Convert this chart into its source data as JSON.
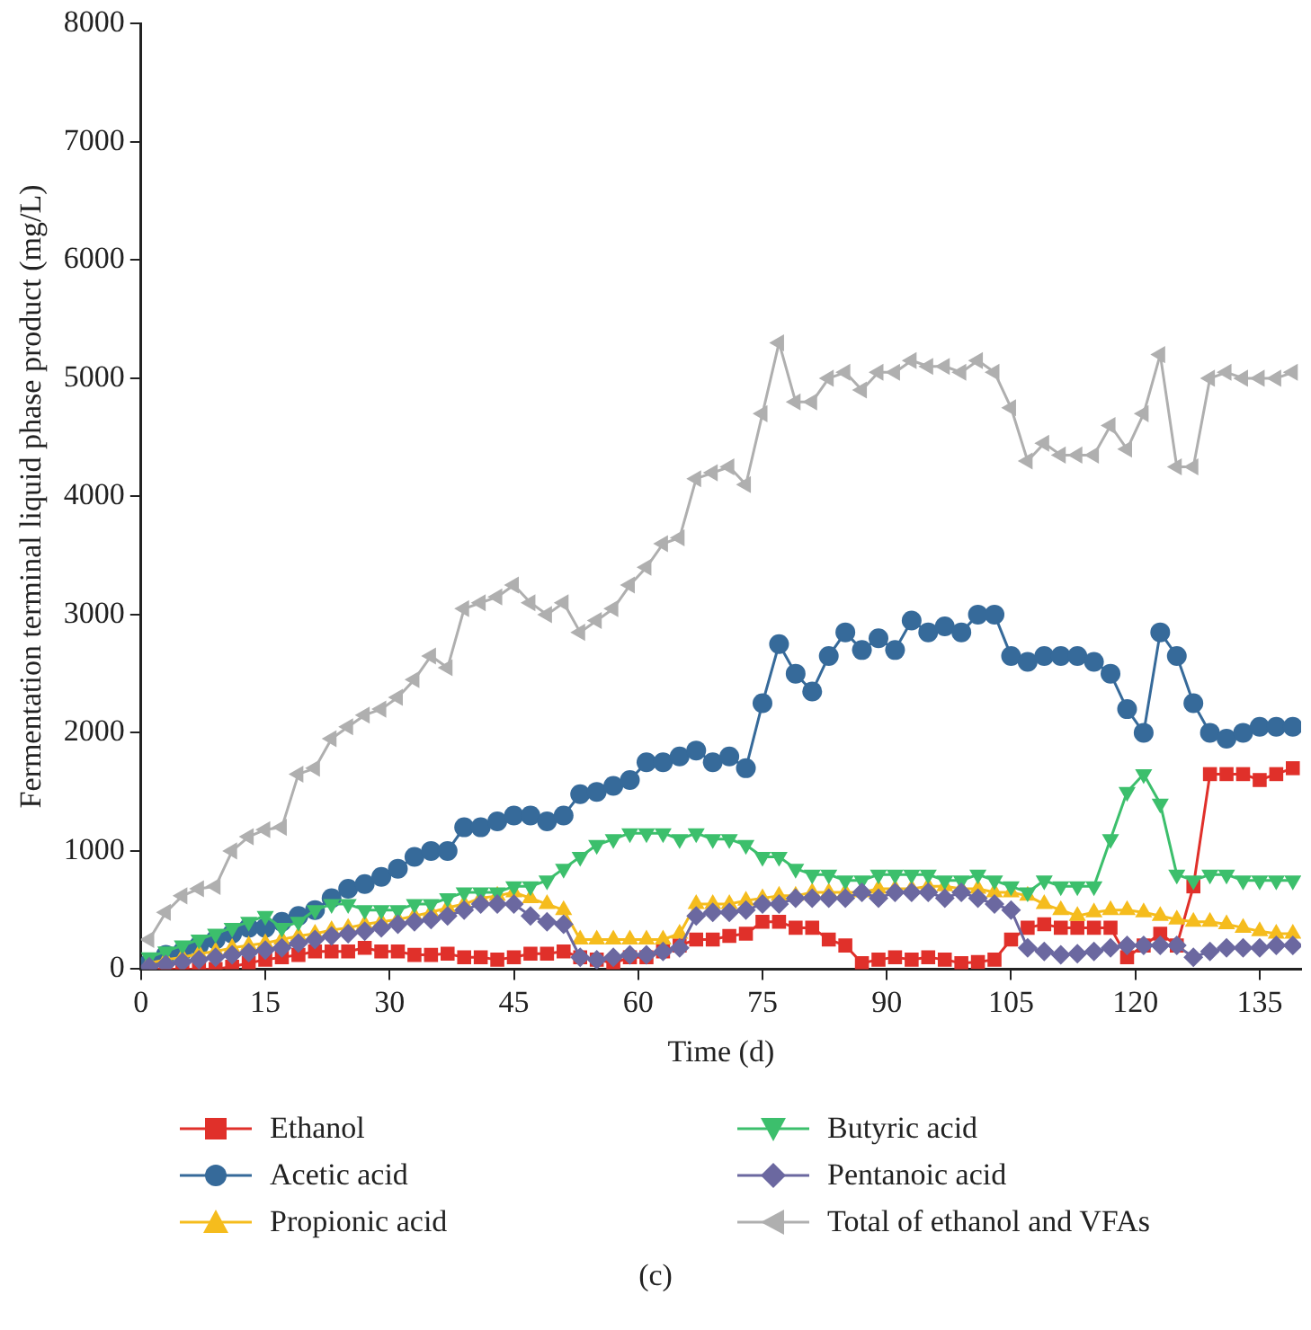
{
  "chart_data": {
    "type": "line",
    "xlabel": "Time (d)",
    "ylabel": "Fermentation terminal liquid phase product (mg/L)",
    "xlim": [
      0,
      140
    ],
    "xticks": [
      0,
      15,
      30,
      45,
      60,
      75,
      90,
      105,
      120,
      135
    ],
    "ylim": [
      0,
      8000
    ],
    "yticks": [
      0,
      1000,
      2000,
      3000,
      4000,
      5000,
      6000,
      7000,
      8000
    ],
    "grid": false,
    "legend": "bottom",
    "line_style": "solid",
    "x": [
      1,
      3,
      5,
      7,
      9,
      11,
      13,
      15,
      17,
      19,
      21,
      23,
      25,
      27,
      29,
      31,
      33,
      35,
      37,
      39,
      41,
      43,
      45,
      47,
      49,
      51,
      53,
      55,
      57,
      59,
      61,
      63,
      65,
      67,
      69,
      71,
      73,
      75,
      77,
      79,
      81,
      83,
      85,
      87,
      89,
      91,
      93,
      95,
      97,
      99,
      101,
      103,
      105,
      107,
      109,
      111,
      113,
      115,
      117,
      119,
      121,
      123,
      125,
      127,
      129,
      131,
      133,
      135,
      137,
      139
    ],
    "annotations": [
      "(c)"
    ],
    "series": [
      {
        "name": "Ethanol",
        "color": "#e0302a",
        "marker": "square",
        "values": [
          0,
          0,
          0,
          0,
          0,
          20,
          50,
          80,
          100,
          120,
          150,
          150,
          150,
          180,
          150,
          150,
          120,
          120,
          130,
          100,
          100,
          80,
          100,
          130,
          130,
          150,
          100,
          80,
          50,
          100,
          100,
          150,
          200,
          250,
          250,
          280,
          300,
          400,
          400,
          350,
          350,
          250,
          200,
          50,
          80,
          100,
          80,
          100,
          80,
          50,
          60,
          80,
          250,
          350,
          380,
          350,
          350,
          350,
          350,
          100,
          200,
          300,
          200,
          700,
          1650,
          1650,
          1650,
          1600,
          1650,
          1700
        ]
      },
      {
        "name": "Acetic acid",
        "color": "#366a9a",
        "marker": "circle",
        "values": [
          50,
          120,
          150,
          200,
          250,
          300,
          350,
          350,
          400,
          450,
          500,
          600,
          680,
          720,
          780,
          850,
          950,
          1000,
          1000,
          1200,
          1200,
          1250,
          1300,
          1300,
          1250,
          1300,
          1480,
          1500,
          1550,
          1600,
          1750,
          1750,
          1800,
          1850,
          1750,
          1800,
          1700,
          2250,
          2750,
          2500,
          2350,
          2650,
          2850,
          2700,
          2800,
          2700,
          2950,
          2850,
          2900,
          2850,
          3000,
          3000,
          2650,
          2600,
          2650,
          2650,
          2650,
          2600,
          2500,
          2200,
          2000,
          2850,
          2650,
          2250,
          2000,
          1950,
          2000,
          2050,
          2050,
          2050
        ]
      },
      {
        "name": "Propionic acid",
        "color": "#f5bc1d",
        "marker": "triangle",
        "values": [
          50,
          80,
          100,
          130,
          150,
          180,
          200,
          220,
          250,
          280,
          300,
          330,
          350,
          380,
          400,
          420,
          450,
          480,
          520,
          550,
          600,
          620,
          650,
          600,
          550,
          500,
          250,
          250,
          250,
          250,
          250,
          250,
          300,
          550,
          550,
          550,
          580,
          600,
          620,
          620,
          650,
          650,
          650,
          650,
          680,
          680,
          680,
          700,
          700,
          680,
          680,
          650,
          650,
          620,
          550,
          500,
          450,
          480,
          500,
          500,
          480,
          450,
          420,
          400,
          400,
          380,
          350,
          320,
          300,
          300
        ]
      },
      {
        "name": "Butyric acid",
        "color": "#3cbf6c",
        "marker": "triangle-down",
        "values": [
          100,
          150,
          200,
          250,
          300,
          350,
          400,
          450,
          350,
          400,
          500,
          550,
          550,
          500,
          500,
          500,
          550,
          550,
          600,
          650,
          650,
          650,
          700,
          700,
          750,
          850,
          950,
          1050,
          1100,
          1150,
          1150,
          1150,
          1100,
          1150,
          1100,
          1100,
          1050,
          950,
          950,
          850,
          800,
          800,
          750,
          750,
          800,
          800,
          800,
          800,
          750,
          750,
          800,
          750,
          700,
          650,
          750,
          700,
          700,
          700,
          1100,
          1500,
          1650,
          1400,
          800,
          750,
          800,
          800,
          750,
          750,
          750,
          750
        ]
      },
      {
        "name": "Pentanoic acid",
        "color": "#6b68a0",
        "marker": "diamond",
        "values": [
          20,
          40,
          60,
          80,
          100,
          120,
          140,
          160,
          180,
          220,
          250,
          280,
          300,
          320,
          350,
          380,
          400,
          420,
          450,
          500,
          550,
          550,
          550,
          450,
          400,
          380,
          100,
          80,
          100,
          120,
          120,
          150,
          180,
          450,
          480,
          480,
          500,
          550,
          550,
          600,
          600,
          600,
          600,
          650,
          600,
          650,
          650,
          650,
          600,
          650,
          600,
          550,
          500,
          180,
          150,
          120,
          130,
          150,
          180,
          200,
          200,
          200,
          200,
          100,
          150,
          180,
          180,
          180,
          200,
          200
        ]
      },
      {
        "name": "Total of ethanol and VFAs",
        "color": "#afafaf",
        "marker": "triangle-left",
        "values": [
          250,
          480,
          620,
          680,
          700,
          1000,
          1120,
          1180,
          1200,
          1650,
          1700,
          1950,
          2050,
          2150,
          2200,
          2300,
          2450,
          2650,
          2550,
          3050,
          3100,
          3150,
          3250,
          3100,
          3000,
          3100,
          2850,
          2950,
          3050,
          3250,
          3400,
          3600,
          3650,
          4150,
          4200,
          4250,
          4100,
          4700,
          5300,
          4800,
          4800,
          5000,
          5050,
          4900,
          5050,
          5050,
          5150,
          5100,
          5100,
          5050,
          5150,
          5050,
          4750,
          4300,
          4450,
          4350,
          4350,
          4350,
          4600,
          4400,
          4700,
          5200,
          4250,
          4250,
          5000,
          5050,
          5000,
          5000,
          5000,
          5050
        ]
      }
    ]
  }
}
